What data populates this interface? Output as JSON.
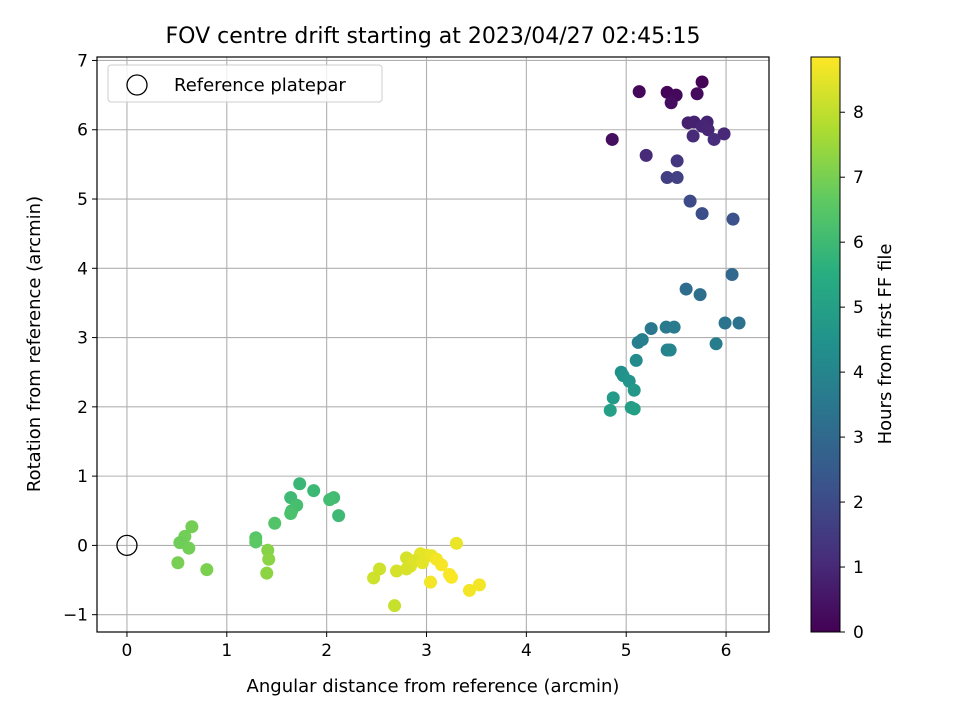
{
  "chart_data": {
    "type": "scatter",
    "title": "FOV centre drift starting at 2023/04/27 02:45:15",
    "xlabel": "Angular distance from reference (arcmin)",
    "ylabel": "Rotation from reference (arcmin)",
    "xlim": [
      -0.3,
      6.43
    ],
    "ylim": [
      -1.25,
      7.05
    ],
    "xticks": [
      "0",
      "1",
      "2",
      "3",
      "4",
      "5",
      "6"
    ],
    "yticks": [
      "-1",
      "0",
      "1",
      "2",
      "3",
      "4",
      "5",
      "6",
      "7"
    ],
    "grid": true,
    "legend": {
      "position": "upper-left",
      "entries": [
        "Reference platepar"
      ]
    },
    "reference_point": {
      "label": "Reference platepar",
      "x": 0,
      "y": 0
    },
    "colorbar": {
      "label": "Hours from first FF file",
      "range": [
        0,
        8.85
      ],
      "ticks": [
        "0",
        "1",
        "2",
        "3",
        "4",
        "5",
        "6",
        "7",
        "8"
      ],
      "colormap": "viridis"
    },
    "points": [
      {
        "x": 5.76,
        "y": 6.69,
        "c": 0.05
      },
      {
        "x": 5.41,
        "y": 6.54,
        "c": 0.1
      },
      {
        "x": 5.13,
        "y": 6.55,
        "c": 0.15
      },
      {
        "x": 5.5,
        "y": 6.5,
        "c": 0.2
      },
      {
        "x": 5.71,
        "y": 6.52,
        "c": 0.25
      },
      {
        "x": 5.45,
        "y": 6.39,
        "c": 0.3
      },
      {
        "x": 4.86,
        "y": 5.86,
        "c": 0.35
      },
      {
        "x": 5.62,
        "y": 6.1,
        "c": 0.75
      },
      {
        "x": 5.68,
        "y": 6.11,
        "c": 0.8
      },
      {
        "x": 5.81,
        "y": 6.11,
        "c": 0.85
      },
      {
        "x": 5.76,
        "y": 6.05,
        "c": 0.9
      },
      {
        "x": 5.82,
        "y": 6.0,
        "c": 0.95
      },
      {
        "x": 5.98,
        "y": 5.94,
        "c": 1.0
      },
      {
        "x": 5.67,
        "y": 5.91,
        "c": 1.05
      },
      {
        "x": 5.88,
        "y": 5.86,
        "c": 1.1
      },
      {
        "x": 5.2,
        "y": 5.63,
        "c": 1.05
      },
      {
        "x": 5.51,
        "y": 5.55,
        "c": 1.4
      },
      {
        "x": 5.41,
        "y": 5.31,
        "c": 1.6
      },
      {
        "x": 5.51,
        "y": 5.31,
        "c": 1.7
      },
      {
        "x": 5.64,
        "y": 4.97,
        "c": 2.0
      },
      {
        "x": 5.76,
        "y": 4.79,
        "c": 2.1
      },
      {
        "x": 6.07,
        "y": 4.71,
        "c": 2.2
      },
      {
        "x": 6.06,
        "y": 3.91,
        "c": 3.0
      },
      {
        "x": 5.6,
        "y": 3.7,
        "c": 3.1
      },
      {
        "x": 5.74,
        "y": 3.62,
        "c": 3.2
      },
      {
        "x": 6.13,
        "y": 3.21,
        "c": 3.3
      },
      {
        "x": 5.99,
        "y": 3.21,
        "c": 3.35
      },
      {
        "x": 5.25,
        "y": 3.13,
        "c": 3.5
      },
      {
        "x": 5.4,
        "y": 3.15,
        "c": 3.6
      },
      {
        "x": 5.48,
        "y": 3.15,
        "c": 3.65
      },
      {
        "x": 5.9,
        "y": 2.91,
        "c": 3.7
      },
      {
        "x": 5.16,
        "y": 2.97,
        "c": 3.75
      },
      {
        "x": 5.12,
        "y": 2.93,
        "c": 3.8
      },
      {
        "x": 5.41,
        "y": 2.82,
        "c": 3.9
      },
      {
        "x": 5.44,
        "y": 2.82,
        "c": 3.95
      },
      {
        "x": 5.1,
        "y": 2.67,
        "c": 4.2
      },
      {
        "x": 4.95,
        "y": 2.5,
        "c": 4.4
      },
      {
        "x": 4.97,
        "y": 2.45,
        "c": 4.5
      },
      {
        "x": 5.03,
        "y": 2.37,
        "c": 4.55
      },
      {
        "x": 5.08,
        "y": 2.24,
        "c": 4.7
      },
      {
        "x": 4.87,
        "y": 2.13,
        "c": 4.8
      },
      {
        "x": 5.05,
        "y": 1.99,
        "c": 4.9
      },
      {
        "x": 5.08,
        "y": 1.97,
        "c": 4.95
      },
      {
        "x": 4.84,
        "y": 1.95,
        "c": 5.0
      },
      {
        "x": 1.73,
        "y": 0.89,
        "c": 5.9
      },
      {
        "x": 1.87,
        "y": 0.79,
        "c": 5.95
      },
      {
        "x": 1.64,
        "y": 0.69,
        "c": 6.0
      },
      {
        "x": 2.07,
        "y": 0.69,
        "c": 6.05
      },
      {
        "x": 2.03,
        "y": 0.66,
        "c": 6.1
      },
      {
        "x": 1.7,
        "y": 0.58,
        "c": 6.15
      },
      {
        "x": 1.65,
        "y": 0.5,
        "c": 6.2
      },
      {
        "x": 1.64,
        "y": 0.46,
        "c": 6.25
      },
      {
        "x": 2.12,
        "y": 0.43,
        "c": 6.0
      },
      {
        "x": 1.48,
        "y": 0.32,
        "c": 6.4
      },
      {
        "x": 1.29,
        "y": 0.11,
        "c": 6.5
      },
      {
        "x": 1.29,
        "y": 0.05,
        "c": 6.6
      },
      {
        "x": 0.65,
        "y": 0.27,
        "c": 6.95
      },
      {
        "x": 0.58,
        "y": 0.13,
        "c": 6.9
      },
      {
        "x": 0.53,
        "y": 0.04,
        "c": 6.85
      },
      {
        "x": 0.62,
        "y": -0.04,
        "c": 6.9
      },
      {
        "x": 0.51,
        "y": -0.25,
        "c": 7.0
      },
      {
        "x": 0.8,
        "y": -0.35,
        "c": 7.05
      },
      {
        "x": 1.41,
        "y": -0.07,
        "c": 7.2
      },
      {
        "x": 1.42,
        "y": -0.2,
        "c": 7.25
      },
      {
        "x": 1.4,
        "y": -0.4,
        "c": 7.3
      },
      {
        "x": 3.3,
        "y": 0.03,
        "c": 8.6
      },
      {
        "x": 2.94,
        "y": -0.12,
        "c": 8.5
      },
      {
        "x": 3.0,
        "y": -0.14,
        "c": 8.55
      },
      {
        "x": 3.05,
        "y": -0.15,
        "c": 8.6
      },
      {
        "x": 2.8,
        "y": -0.18,
        "c": 8.3
      },
      {
        "x": 3.1,
        "y": -0.2,
        "c": 8.7
      },
      {
        "x": 2.88,
        "y": -0.22,
        "c": 8.4
      },
      {
        "x": 2.96,
        "y": -0.25,
        "c": 8.5
      },
      {
        "x": 3.15,
        "y": -0.28,
        "c": 8.75
      },
      {
        "x": 2.84,
        "y": -0.3,
        "c": 8.4
      },
      {
        "x": 2.53,
        "y": -0.34,
        "c": 8.2
      },
      {
        "x": 2.7,
        "y": -0.37,
        "c": 8.3
      },
      {
        "x": 2.8,
        "y": -0.34,
        "c": 8.35
      },
      {
        "x": 3.23,
        "y": -0.42,
        "c": 8.8
      },
      {
        "x": 3.25,
        "y": -0.46,
        "c": 8.8
      },
      {
        "x": 2.47,
        "y": -0.47,
        "c": 8.2
      },
      {
        "x": 3.04,
        "y": -0.53,
        "c": 8.7
      },
      {
        "x": 3.53,
        "y": -0.57,
        "c": 8.7
      },
      {
        "x": 3.43,
        "y": -0.65,
        "c": 8.7
      },
      {
        "x": 2.68,
        "y": -0.87,
        "c": 8.1
      }
    ]
  }
}
